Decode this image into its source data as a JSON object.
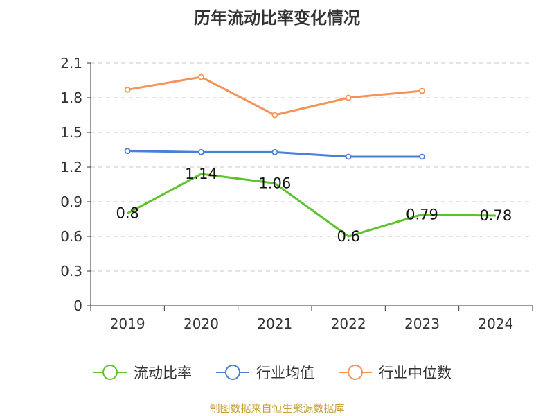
{
  "chart_data": {
    "type": "line",
    "title": "历年流动比率变化情况",
    "categories": [
      "2019",
      "2020",
      "2021",
      "2022",
      "2023",
      "2024"
    ],
    "ylim": [
      0,
      2.1
    ],
    "yticks": [
      "0",
      "0.3",
      "0.6",
      "0.9",
      "1.2",
      "1.5",
      "1.8",
      "2.1"
    ],
    "grid": true,
    "legend_position": "bottom",
    "series": [
      {
        "name": "流动比率",
        "color": "#5ec22a",
        "values": [
          0.8,
          1.14,
          1.06,
          0.6,
          0.79,
          0.78
        ],
        "labels": [
          "0.8",
          "1.14",
          "1.06",
          "0.6",
          "0.79",
          "0.78"
        ]
      },
      {
        "name": "行业均值",
        "color": "#4a7fd6",
        "values": [
          1.34,
          1.33,
          1.33,
          1.29,
          1.29,
          null
        ]
      },
      {
        "name": "行业中位数",
        "color": "#f59257",
        "values": [
          1.87,
          1.98,
          1.65,
          1.8,
          1.86,
          null
        ]
      }
    ]
  },
  "footer": {
    "source": "制图数据来自恒生聚源数据库"
  }
}
